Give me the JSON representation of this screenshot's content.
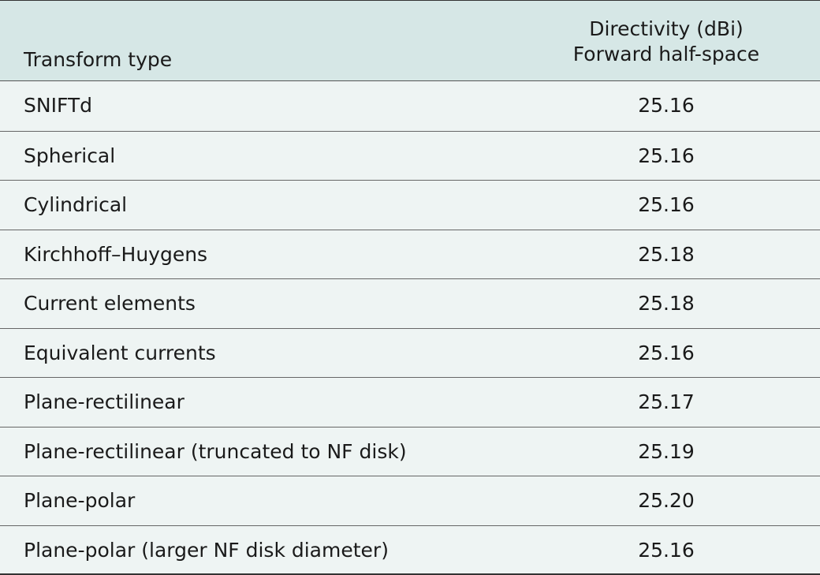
{
  "table": {
    "header": [
      "Transform type",
      [
        "Directivity (dBi)",
        "Forward half-space"
      ]
    ],
    "rows": [
      [
        "SNIFTd",
        "25.16"
      ],
      [
        "Spherical",
        "25.16"
      ],
      [
        "Cylindrical",
        "25.16"
      ],
      [
        "Kirchhoff–Huygens",
        "25.18"
      ],
      [
        "Current elements",
        "25.18"
      ],
      [
        "Equivalent currents",
        "25.16"
      ],
      [
        "Plane-rectilinear",
        "25.17"
      ],
      [
        "Plane-rectilinear (truncated to NF disk)",
        "25.19"
      ],
      [
        "Plane-polar",
        "25.20"
      ],
      [
        "Plane-polar (larger NF disk diameter)",
        "25.16"
      ]
    ]
  }
}
